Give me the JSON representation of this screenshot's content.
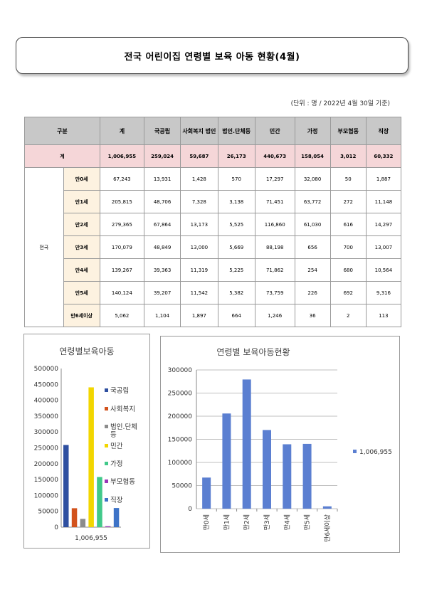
{
  "title": "전국 어린이집 연령별 보육 아동 현황(4월)",
  "unit_note": "(단위 : 명 / 2022년 4월 30일 기준)",
  "table": {
    "header": {
      "group": "구분",
      "columns": [
        "계",
        "국공립",
        "사회복지 법인",
        "법인.단체등",
        "민간",
        "가정",
        "부모협동",
        "직장"
      ]
    },
    "total": {
      "label": "계",
      "values": [
        "1,006,955",
        "259,024",
        "59,687",
        "26,173",
        "440,673",
        "158,054",
        "3,012",
        "60,332"
      ]
    },
    "region": "전국",
    "rows": [
      {
        "age": "만0세",
        "values": [
          "67,243",
          "13,931",
          "1,428",
          "570",
          "17,297",
          "32,080",
          "50",
          "1,887"
        ]
      },
      {
        "age": "만1세",
        "values": [
          "205,815",
          "48,706",
          "7,328",
          "3,138",
          "71,451",
          "63,772",
          "272",
          "11,148"
        ]
      },
      {
        "age": "만2세",
        "values": [
          "279,365",
          "67,864",
          "13,173",
          "5,525",
          "116,860",
          "61,030",
          "616",
          "14,297"
        ]
      },
      {
        "age": "만3세",
        "values": [
          "170,079",
          "48,849",
          "13,000",
          "5,669",
          "88,198",
          "656",
          "700",
          "13,007"
        ]
      },
      {
        "age": "만4세",
        "values": [
          "139,267",
          "39,363",
          "11,319",
          "5,225",
          "71,862",
          "254",
          "680",
          "10,564"
        ]
      },
      {
        "age": "만5세",
        "values": [
          "140,124",
          "39,207",
          "11,542",
          "5,382",
          "73,759",
          "226",
          "692",
          "9,316"
        ]
      },
      {
        "age": "만6세이상",
        "values": [
          "5,062",
          "1,104",
          "1,897",
          "664",
          "1,246",
          "36",
          "2",
          "113"
        ]
      }
    ]
  },
  "chart_data": [
    {
      "type": "bar",
      "title": "연령별보육아동",
      "categories": [
        "1,006,955"
      ],
      "series": [
        {
          "name": "국공립",
          "values": [
            259024
          ],
          "color": "#2e4fa0"
        },
        {
          "name": "사회복지",
          "values": [
            59687
          ],
          "color": "#d2521c"
        },
        {
          "name": "법인.단체등",
          "values": [
            26173
          ],
          "color": "#8c8c8c"
        },
        {
          "name": "민간",
          "values": [
            440673
          ],
          "color": "#f2d600"
        },
        {
          "name": "가정",
          "values": [
            158054
          ],
          "color": "#41c98a"
        },
        {
          "name": "부모협동",
          "values": [
            3012
          ],
          "color": "#9b36b8"
        },
        {
          "name": "직장",
          "values": [
            60332
          ],
          "color": "#3e73c7"
        }
      ],
      "ylim": [
        0,
        500000
      ],
      "yticks": [
        "500000",
        "450000",
        "400000",
        "350000",
        "300000",
        "250000",
        "200000",
        "150000",
        "100000",
        "50000",
        "0"
      ],
      "legend": "right"
    },
    {
      "type": "bar",
      "title": "연령별 보육아동현황",
      "categories": [
        "만0세",
        "만1세",
        "만2세",
        "만3세",
        "만4세",
        "만5세",
        "만6세이상"
      ],
      "series": [
        {
          "name": "1,006,955",
          "values": [
            67243,
            205815,
            279365,
            170079,
            139267,
            140124,
            5062
          ],
          "color": "#5b7fd1"
        }
      ],
      "ylim": [
        0,
        300000
      ],
      "yticks": [
        "300000",
        "250000",
        "200000",
        "150000",
        "100000",
        "50000",
        "0"
      ],
      "grid": true,
      "legend": "right"
    }
  ]
}
